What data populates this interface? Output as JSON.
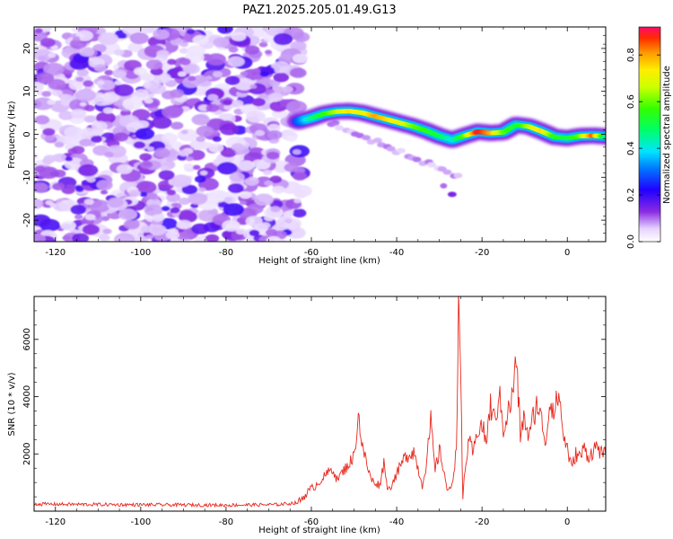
{
  "title": "PAZ1.2025.205.01.49.G13",
  "chart_data": [
    {
      "type": "heatmap",
      "xlabel": "Height of straight line (km)",
      "ylabel": "Frequency (Hz)",
      "xlim": [
        -125,
        9
      ],
      "ylim": [
        -25,
        25
      ],
      "xticks": [
        -120,
        -100,
        -80,
        -60,
        -40,
        -20,
        0
      ],
      "yticks": [
        -20,
        -10,
        0,
        10,
        20
      ],
      "colorbar": {
        "label": "Normalized spectral amplitude",
        "range": [
          0,
          0.92
        ],
        "ticks": [
          "0.0",
          "0.2",
          "0.4",
          "0.6",
          "0.8"
        ]
      },
      "ridge": {
        "x": [
          -63,
          -60,
          -57,
          -54,
          -51,
          -48,
          -45,
          -42,
          -39,
          -36,
          -33,
          -30,
          -27,
          -24,
          -21,
          -18,
          -15,
          -12,
          -9,
          -6,
          -3,
          0,
          3,
          6,
          9
        ],
        "y": [
          3,
          3.8,
          4.8,
          5.3,
          5.4,
          5.0,
          4.2,
          3.4,
          2.6,
          1.8,
          0.8,
          -0.4,
          -1.3,
          -0.3,
          0.6,
          0.3,
          0.5,
          2.2,
          1.8,
          0.7,
          -0.6,
          -0.9,
          -0.4,
          -0.3,
          -0.5
        ],
        "amplitude": [
          0.3,
          0.45,
          0.55,
          0.65,
          0.75,
          0.7,
          0.8,
          0.75,
          0.7,
          0.6,
          0.55,
          0.5,
          0.4,
          0.6,
          0.9,
          0.8,
          0.6,
          0.5,
          0.65,
          0.75,
          0.55,
          0.5,
          0.6,
          0.85,
          0.45
        ]
      },
      "noise_region_x": [
        -125,
        -62
      ]
    },
    {
      "type": "line",
      "xlabel": "Height of straight line (km)",
      "ylabel": "SNR (10 * v/v)",
      "xlim": [
        -125,
        9
      ],
      "ylim": [
        0,
        7500
      ],
      "xticks": [
        -120,
        -100,
        -80,
        -60,
        -40,
        -20,
        0
      ],
      "yticks": [
        2000,
        4000,
        6000
      ],
      "series": [
        {
          "color": "#e8281e",
          "x": [
            -125,
            -110,
            -95,
            -80,
            -68,
            -63,
            -61,
            -59,
            -57,
            -55,
            -54,
            -52,
            -50,
            -49,
            -48,
            -46,
            -44,
            -43,
            -42,
            -40,
            -38,
            -36,
            -34,
            -33,
            -32,
            -31,
            -30,
            -29,
            -28,
            -27,
            -26,
            -25.5,
            -24.8,
            -24.5,
            -24,
            -23,
            -22,
            -21,
            -20,
            -19,
            -18,
            -17,
            -16,
            -15,
            -14,
            -13,
            -12,
            -11.5,
            -11,
            -10,
            -9,
            -8,
            -7,
            -6,
            -5,
            -4,
            -3,
            -2,
            -1,
            0,
            1,
            2,
            3,
            4,
            5,
            6,
            7,
            8,
            9
          ],
          "y": [
            250,
            230,
            220,
            210,
            230,
            300,
            650,
            900,
            1200,
            1500,
            1100,
            1500,
            1900,
            3400,
            2200,
            1100,
            900,
            1700,
            700,
            1300,
            1900,
            2100,
            900,
            1700,
            3100,
            1400,
            2100,
            1500,
            600,
            1000,
            2100,
            7600,
            3000,
            400,
            1500,
            2400,
            2000,
            2900,
            3000,
            2400,
            3700,
            3100,
            4100,
            2900,
            3400,
            3900,
            5300,
            4000,
            2700,
            3300,
            2500,
            3300,
            3800,
            3100,
            2400,
            4000,
            3400,
            4200,
            2700,
            2200,
            1500,
            2000,
            1900,
            2200,
            1900,
            2100,
            2300,
            2000,
            1950
          ]
        }
      ]
    }
  ]
}
